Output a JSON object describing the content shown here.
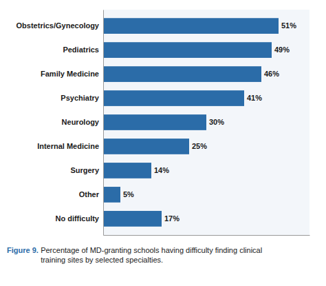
{
  "chart_data": {
    "type": "bar",
    "orientation": "horizontal",
    "title": "Figure 9.",
    "subtitle": "Percentage of MD-granting schools having difficulty finding clinical\ntraining sites by selected specialties.",
    "categories": [
      "No difficulty",
      "Other",
      "Surgery",
      "Internal Medicine",
      "Neurology",
      "Psychiatry",
      "Family Medicine",
      "Pediatrics",
      "Obstetrics/Gynecology"
    ],
    "values": [
      17,
      5,
      14,
      25,
      30,
      41,
      46,
      49,
      51
    ],
    "value_labels": [
      "17%",
      "5%",
      "14%",
      "25%",
      "30%",
      "41%",
      "46%",
      "49%",
      "51%"
    ],
    "data_labels": true,
    "color": "#2B6CA8",
    "xlim": [
      0,
      60
    ],
    "tick_labels": "y",
    "grid": false
  }
}
